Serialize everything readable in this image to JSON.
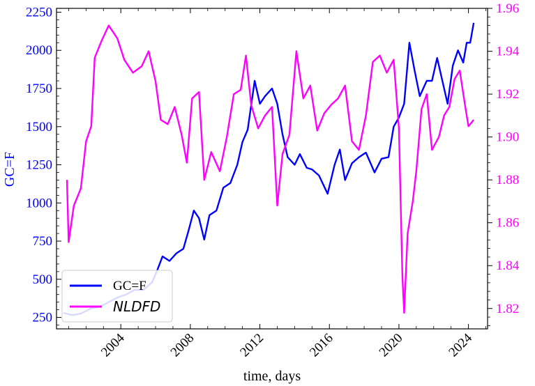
{
  "chart_data": {
    "type": "line",
    "xlabel": "time, days",
    "ylabel_left": "GC=F",
    "x_tick_labels": [
      "2004",
      "2008",
      "2012",
      "2016",
      "2020",
      "2024"
    ],
    "x_ticks": [
      2004,
      2008,
      2012,
      2016,
      2020,
      2024
    ],
    "xlim": [
      2000.3,
      2025.1
    ],
    "left_axis": {
      "ylim": [
        175,
        2275
      ],
      "ticks": [
        250,
        500,
        750,
        1000,
        1250,
        1500,
        1750,
        2000,
        2250
      ],
      "tick_labels": [
        "250",
        "500",
        "750",
        "1000",
        "1250",
        "1500",
        "1750",
        "2000",
        "2250"
      ],
      "color": "#0000ff"
    },
    "right_axis": {
      "ylim": [
        1.8105,
        1.96
      ],
      "ticks": [
        1.82,
        1.84,
        1.86,
        1.88,
        1.9,
        1.92,
        1.94,
        1.96
      ],
      "tick_labels": [
        "1.82",
        "1.84",
        "1.86",
        "1.88",
        "1.90",
        "1.92",
        "1.94",
        "1.96"
      ],
      "color": "#ff00ff"
    },
    "legend": {
      "placement": "lower-left"
    },
    "series": [
      {
        "name": "GC=F",
        "color": "#0000ff",
        "axis": "left",
        "points": [
          [
            2000.7,
            280
          ],
          [
            2001.2,
            265
          ],
          [
            2001.7,
            275
          ],
          [
            2002.3,
            310
          ],
          [
            2002.8,
            320
          ],
          [
            2003.3,
            350
          ],
          [
            2003.8,
            380
          ],
          [
            2004.3,
            400
          ],
          [
            2004.8,
            430
          ],
          [
            2005.3,
            430
          ],
          [
            2005.8,
            480
          ],
          [
            2006.1,
            560
          ],
          [
            2006.4,
            650
          ],
          [
            2006.8,
            620
          ],
          [
            2007.2,
            670
          ],
          [
            2007.6,
            700
          ],
          [
            2007.9,
            820
          ],
          [
            2008.2,
            950
          ],
          [
            2008.5,
            900
          ],
          [
            2008.8,
            760
          ],
          [
            2009.1,
            920
          ],
          [
            2009.5,
            950
          ],
          [
            2009.9,
            1100
          ],
          [
            2010.3,
            1130
          ],
          [
            2010.7,
            1250
          ],
          [
            2011.0,
            1400
          ],
          [
            2011.3,
            1480
          ],
          [
            2011.7,
            1800
          ],
          [
            2012.0,
            1650
          ],
          [
            2012.3,
            1700
          ],
          [
            2012.7,
            1750
          ],
          [
            2013.0,
            1650
          ],
          [
            2013.3,
            1450
          ],
          [
            2013.6,
            1300
          ],
          [
            2014.0,
            1250
          ],
          [
            2014.3,
            1320
          ],
          [
            2014.7,
            1230
          ],
          [
            2015.0,
            1220
          ],
          [
            2015.4,
            1180
          ],
          [
            2015.9,
            1060
          ],
          [
            2016.3,
            1250
          ],
          [
            2016.6,
            1350
          ],
          [
            2016.9,
            1150
          ],
          [
            2017.3,
            1260
          ],
          [
            2017.7,
            1300
          ],
          [
            2018.1,
            1330
          ],
          [
            2018.6,
            1200
          ],
          [
            2019.0,
            1290
          ],
          [
            2019.4,
            1300
          ],
          [
            2019.7,
            1500
          ],
          [
            2020.0,
            1560
          ],
          [
            2020.3,
            1650
          ],
          [
            2020.6,
            2050
          ],
          [
            2020.9,
            1870
          ],
          [
            2021.2,
            1700
          ],
          [
            2021.6,
            1800
          ],
          [
            2021.9,
            1800
          ],
          [
            2022.2,
            1950
          ],
          [
            2022.5,
            1800
          ],
          [
            2022.8,
            1650
          ],
          [
            2023.1,
            1900
          ],
          [
            2023.4,
            2000
          ],
          [
            2023.7,
            1920
          ],
          [
            2023.9,
            2050
          ],
          [
            2024.1,
            2050
          ],
          [
            2024.3,
            2180
          ]
        ]
      },
      {
        "name": "NLDFD",
        "color": "#ff00ff",
        "axis": "right",
        "points": [
          [
            2000.9,
            1.88
          ],
          [
            2001.0,
            1.851
          ],
          [
            2001.3,
            1.868
          ],
          [
            2001.7,
            1.876
          ],
          [
            2002.0,
            1.898
          ],
          [
            2002.3,
            1.905
          ],
          [
            2002.5,
            1.937
          ],
          [
            2002.9,
            1.945
          ],
          [
            2003.3,
            1.952
          ],
          [
            2003.8,
            1.946
          ],
          [
            2004.2,
            1.936
          ],
          [
            2004.7,
            1.93
          ],
          [
            2005.2,
            1.933
          ],
          [
            2005.6,
            1.94
          ],
          [
            2006.0,
            1.926
          ],
          [
            2006.3,
            1.908
          ],
          [
            2006.7,
            1.906
          ],
          [
            2007.1,
            1.914
          ],
          [
            2007.5,
            1.901
          ],
          [
            2007.8,
            1.888
          ],
          [
            2008.1,
            1.918
          ],
          [
            2008.5,
            1.921
          ],
          [
            2008.8,
            1.88
          ],
          [
            2009.2,
            1.893
          ],
          [
            2009.7,
            1.884
          ],
          [
            2010.1,
            1.9
          ],
          [
            2010.5,
            1.92
          ],
          [
            2010.9,
            1.922
          ],
          [
            2011.2,
            1.938
          ],
          [
            2011.5,
            1.915
          ],
          [
            2011.9,
            1.904
          ],
          [
            2012.3,
            1.91
          ],
          [
            2012.7,
            1.914
          ],
          [
            2013.0,
            1.868
          ],
          [
            2013.3,
            1.892
          ],
          [
            2013.7,
            1.901
          ],
          [
            2014.1,
            1.94
          ],
          [
            2014.5,
            1.918
          ],
          [
            2014.9,
            1.924
          ],
          [
            2015.3,
            1.903
          ],
          [
            2015.7,
            1.911
          ],
          [
            2016.1,
            1.915
          ],
          [
            2016.5,
            1.918
          ],
          [
            2016.9,
            1.924
          ],
          [
            2017.3,
            1.898
          ],
          [
            2017.7,
            1.894
          ],
          [
            2018.1,
            1.91
          ],
          [
            2018.5,
            1.935
          ],
          [
            2018.9,
            1.938
          ],
          [
            2019.3,
            1.93
          ],
          [
            2019.7,
            1.936
          ],
          [
            2020.0,
            1.904
          ],
          [
            2020.2,
            1.835
          ],
          [
            2020.3,
            1.818
          ],
          [
            2020.5,
            1.855
          ],
          [
            2020.8,
            1.87
          ],
          [
            2021.0,
            1.884
          ],
          [
            2021.3,
            1.913
          ],
          [
            2021.6,
            1.92
          ],
          [
            2021.9,
            1.894
          ],
          [
            2022.3,
            1.9
          ],
          [
            2022.6,
            1.91
          ],
          [
            2022.9,
            1.914
          ],
          [
            2023.2,
            1.927
          ],
          [
            2023.5,
            1.931
          ],
          [
            2023.8,
            1.915
          ],
          [
            2024.0,
            1.905
          ],
          [
            2024.3,
            1.908
          ]
        ]
      }
    ]
  }
}
